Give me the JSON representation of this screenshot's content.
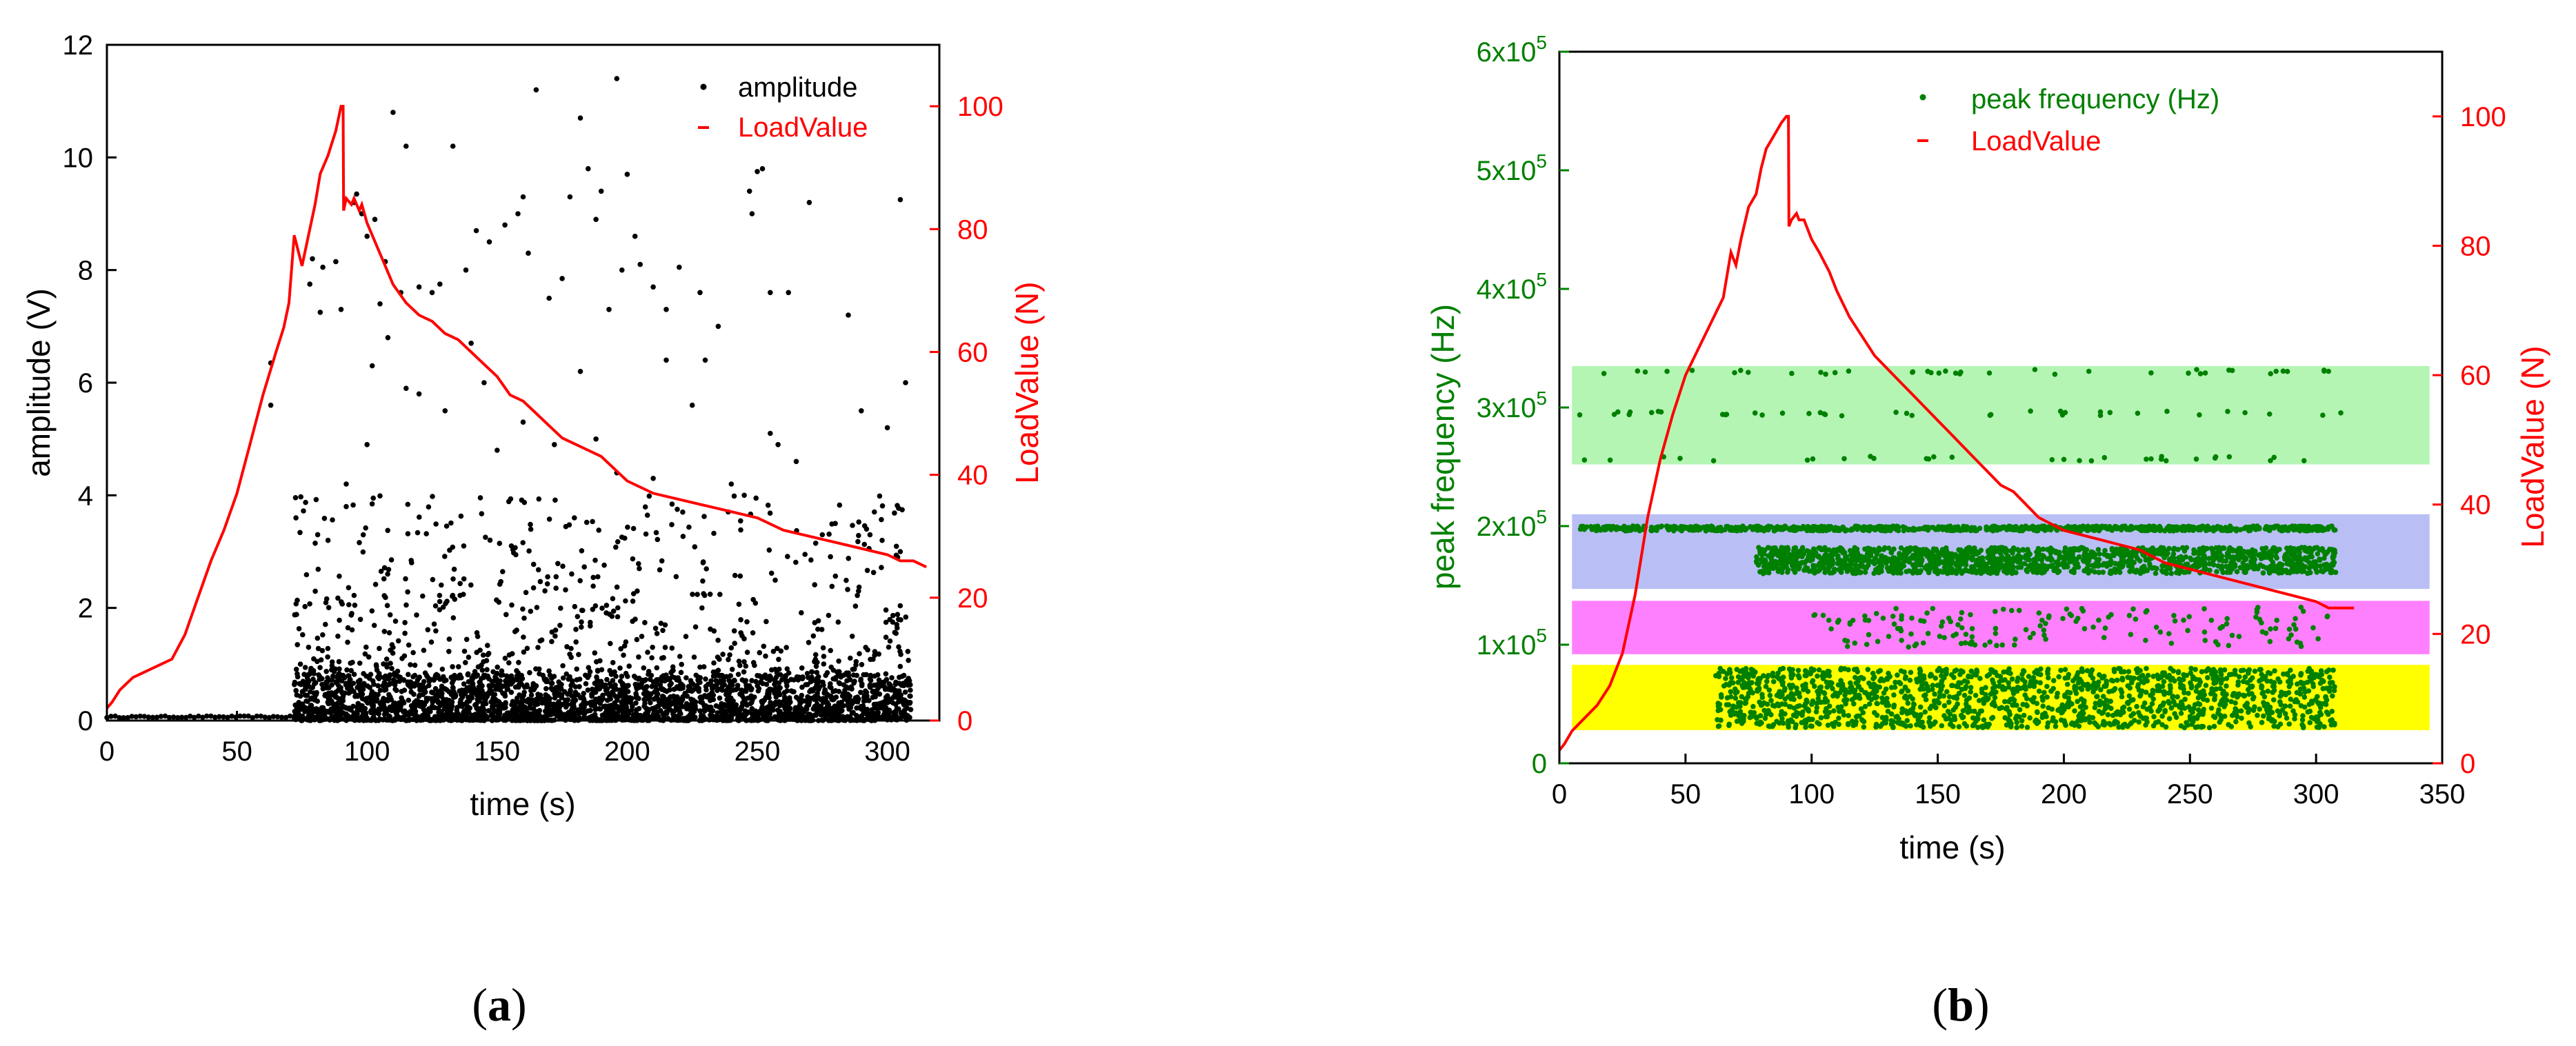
{
  "colors": {
    "axis": "#000000",
    "load": "#ff0000",
    "freq": "#008000",
    "points_a": "#000000",
    "band_green": "#b4f5b4",
    "band_blue": "#b9bff5",
    "band_magenta": "#ff80ff",
    "band_yellow": "#ffff00"
  },
  "panels": {
    "a": {
      "label_open": "(",
      "label_letter": "a",
      "label_close": ")"
    },
    "b": {
      "label_open": "(",
      "label_letter": "b",
      "label_close": ")"
    }
  },
  "chart_data": [
    {
      "id": "a",
      "type": "scatter",
      "xlabel": "time (s)",
      "ylabel": "amplitude (V)",
      "y2label": "LoadValue (N)",
      "xlim": [
        0,
        320
      ],
      "ylim": [
        0,
        12
      ],
      "y2lim": [
        0,
        110
      ],
      "xticks": [
        0,
        50,
        100,
        150,
        200,
        250,
        300
      ],
      "yticks": [
        0,
        2,
        4,
        6,
        8,
        10,
        12
      ],
      "y2ticks": [
        0,
        20,
        40,
        60,
        80,
        100
      ],
      "legend_position": "top-right",
      "series": [
        {
          "name": "amplitude",
          "kind": "scatter",
          "axis": "left",
          "description": "dense AE hits after ~72 s, mostly below 1 V, sparse outliers up to ~11.4 V",
          "baseline": {
            "x_start": 0,
            "x_end": 72,
            "y": 0.05
          },
          "dense_range": {
            "x_start": 72,
            "x_end": 309,
            "y_min": 0,
            "y_max": 0.8
          },
          "scatter_range": {
            "x_start": 72,
            "x_end": 309,
            "y_min": 0.8,
            "y_max": 4
          },
          "outliers": [
            [
              63,
              6.35
            ],
            [
              63,
              5.6
            ],
            [
              78,
              7.75
            ],
            [
              79,
              8.2
            ],
            [
              82,
              7.25
            ],
            [
              83,
              8.05
            ],
            [
              85,
              3.2
            ],
            [
              88,
              8.15
            ],
            [
              90,
              7.3
            ],
            [
              92,
              4.2
            ],
            [
              95,
              9.2
            ],
            [
              96,
              9.35
            ],
            [
              98,
              9.0
            ],
            [
              100,
              8.6
            ],
            [
              103,
              8.9
            ],
            [
              105,
              7.4
            ],
            [
              107,
              8.15
            ],
            [
              110,
              10.8
            ],
            [
              113,
              7.6
            ],
            [
              115,
              10.2
            ],
            [
              120,
              7.7
            ],
            [
              125,
              7.6
            ],
            [
              128,
              7.75
            ],
            [
              133,
              10.2
            ],
            [
              138,
              8.0
            ],
            [
              142,
              8.7
            ],
            [
              147,
              8.5
            ],
            [
              153,
              8.8
            ],
            [
              158,
              9.0
            ],
            [
              160,
              9.3
            ],
            [
              162,
              8.3
            ],
            [
              165,
              11.2
            ],
            [
              170,
              7.5
            ],
            [
              175,
              7.85
            ],
            [
              178,
              9.3
            ],
            [
              182,
              10.7
            ],
            [
              185,
              9.8
            ],
            [
              188,
              8.9
            ],
            [
              190,
              9.4
            ],
            [
              193,
              7.3
            ],
            [
              196,
              11.4
            ],
            [
              198,
              8.0
            ],
            [
              200,
              9.7
            ],
            [
              203,
              8.6
            ],
            [
              205,
              8.1
            ],
            [
              210,
              7.7
            ],
            [
              215,
              7.3
            ],
            [
              220,
              8.05
            ],
            [
              228,
              7.6
            ],
            [
              235,
              7.0
            ],
            [
              247,
              9.4
            ],
            [
              248,
              9.0
            ],
            [
              250,
              9.75
            ],
            [
              252,
              9.8
            ],
            [
              255,
              7.6
            ],
            [
              262,
              7.6
            ],
            [
              270,
              9.2
            ],
            [
              285,
              7.2
            ],
            [
              305,
              9.25
            ],
            [
              307,
              6.0
            ],
            [
              290,
              5.5
            ],
            [
              300,
              5.2
            ],
            [
              230,
              6.4
            ],
            [
              215,
              6.4
            ],
            [
              225,
              5.6
            ],
            [
              182,
              6.2
            ],
            [
              140,
              6.7
            ],
            [
              145,
              6.0
            ],
            [
              120,
              5.8
            ],
            [
              108,
              6.8
            ],
            [
              102,
              6.3
            ],
            [
              255,
              5.1
            ],
            [
              258,
              4.9
            ],
            [
              265,
              4.6
            ],
            [
              280,
              3.5
            ],
            [
              292,
              3.4
            ],
            [
              298,
              3.2
            ],
            [
              304,
              2.9
            ],
            [
              275,
              3.3
            ],
            [
              245,
              4.0
            ],
            [
              188,
              5.0
            ],
            [
              172,
              4.9
            ],
            [
              130,
              5.5
            ],
            [
              115,
              5.9
            ],
            [
              160,
              5.3
            ],
            [
              240,
              4.2
            ],
            [
              210,
              4.3
            ],
            [
              196,
              4.4
            ],
            [
              150,
              4.8
            ],
            [
              100,
              4.9
            ],
            [
              92,
              3.8
            ],
            [
              305,
              3.0
            ]
          ]
        },
        {
          "name": "LoadValue",
          "kind": "line",
          "axis": "right",
          "x": [
            0,
            2,
            5,
            10,
            15,
            20,
            25,
            30,
            35,
            40,
            45,
            50,
            55,
            60,
            65,
            68,
            70,
            72,
            75,
            78,
            80,
            82,
            85,
            88,
            90,
            90.8,
            91,
            92,
            94,
            95,
            97,
            98,
            100,
            103,
            107,
            110,
            115,
            120,
            125,
            130,
            135,
            140,
            145,
            150,
            155,
            160,
            165,
            170,
            175,
            180,
            185,
            190,
            195,
            200,
            210,
            220,
            230,
            240,
            250,
            260,
            270,
            280,
            290,
            300,
            305,
            310,
            315
          ],
          "y": [
            2,
            3,
            5,
            7,
            8,
            9,
            10,
            14,
            20,
            26,
            31,
            37,
            45,
            53,
            60,
            64,
            68,
            79,
            74,
            80,
            84,
            89,
            92,
            96,
            100,
            100,
            83,
            85,
            84,
            85,
            83,
            84,
            81,
            78,
            74,
            71,
            68,
            66,
            65,
            63,
            62,
            60,
            58,
            56,
            53,
            52,
            50,
            48,
            46,
            45,
            44,
            43,
            41,
            39,
            37,
            36,
            35,
            34,
            33,
            31,
            30,
            29,
            28,
            27,
            26,
            26,
            25
          ]
        }
      ]
    },
    {
      "id": "b",
      "type": "scatter",
      "xlabel": "time (s)",
      "ylabel": "peak frequency (Hz)",
      "y2label": "LoadValue (N)",
      "xlim": [
        0,
        350
      ],
      "ylim": [
        0,
        600000
      ],
      "y2lim": [
        0,
        110
      ],
      "xticks": [
        0,
        50,
        100,
        150,
        200,
        250,
        300,
        350
      ],
      "ytick_labels": [
        {
          "value": 0,
          "mantissa": "0",
          "exponent": ""
        },
        {
          "value": 100000,
          "mantissa": "1x10",
          "exponent": "5"
        },
        {
          "value": 200000,
          "mantissa": "2x10",
          "exponent": "5"
        },
        {
          "value": 300000,
          "mantissa": "3x10",
          "exponent": "5"
        },
        {
          "value": 400000,
          "mantissa": "4x10",
          "exponent": "5"
        },
        {
          "value": 500000,
          "mantissa": "5x10",
          "exponent": "5"
        },
        {
          "value": 600000,
          "mantissa": "6x10",
          "exponent": "5"
        }
      ],
      "y2ticks": [
        0,
        20,
        40,
        60,
        80,
        100
      ],
      "legend_position": "top-right",
      "bands": [
        {
          "name": "band-high",
          "color_key": "band_green",
          "x": [
            5,
            345
          ],
          "y": [
            252000,
            335000
          ]
        },
        {
          "name": "band-mid",
          "color_key": "band_blue",
          "x": [
            5,
            345
          ],
          "y": [
            147000,
            210000
          ]
        },
        {
          "name": "band-low-mid",
          "color_key": "band_magenta",
          "x": [
            5,
            345
          ],
          "y": [
            92000,
            137000
          ]
        },
        {
          "name": "band-low",
          "color_key": "band_yellow",
          "x": [
            5,
            345
          ],
          "y": [
            28000,
            83000
          ]
        }
      ],
      "series": [
        {
          "name": "peak frequency (Hz)",
          "kind": "scatter",
          "axis": "left",
          "clusters": [
            {
              "name": "~300 kHz cluster",
              "x_start": 5,
              "x_end": 310,
              "levels": [
                257000,
                295000,
                330000
              ],
              "density": "sparse"
            },
            {
              "name": "~200 kHz line",
              "x_start": 8,
              "x_end": 308,
              "levels": [
                198000
              ],
              "density": "dense"
            },
            {
              "name": "~170 kHz band",
              "x_start": 78,
              "x_end": 308,
              "y_min": 160000,
              "y_max": 182000,
              "density": "dense"
            },
            {
              "name": "~120 kHz cluster",
              "x_start": 100,
              "x_end": 308,
              "y_min": 98000,
              "y_max": 132000,
              "density": "sparse"
            },
            {
              "name": "~50 kHz band",
              "x_start": 62,
              "x_end": 308,
              "y_min": 30000,
              "y_max": 80000,
              "density": "dense"
            }
          ]
        },
        {
          "name": "LoadValue",
          "kind": "line",
          "axis": "right",
          "x": [
            0,
            2,
            5,
            10,
            15,
            20,
            25,
            30,
            35,
            40,
            45,
            50,
            55,
            60,
            65,
            68,
            70,
            72,
            75,
            78,
            80,
            82,
            85,
            88,
            90,
            90.8,
            91,
            92,
            94,
            95,
            97,
            98,
            100,
            103,
            107,
            110,
            115,
            120,
            125,
            130,
            135,
            140,
            145,
            150,
            155,
            160,
            165,
            170,
            175,
            180,
            185,
            190,
            195,
            200,
            210,
            220,
            230,
            240,
            250,
            260,
            270,
            280,
            290,
            300,
            305,
            310,
            315
          ],
          "y": [
            2,
            3,
            5,
            7,
            9,
            12,
            17,
            26,
            38,
            47,
            54,
            60,
            64,
            68,
            72,
            79,
            77,
            81,
            86,
            88,
            92,
            95,
            97,
            99,
            100,
            100,
            83,
            84,
            85,
            84,
            84,
            83,
            81,
            79,
            76,
            73,
            69,
            66,
            63,
            61,
            59,
            57,
            55,
            53,
            51,
            49,
            47,
            45,
            43,
            42,
            40,
            38,
            37,
            36,
            35,
            34,
            33,
            31,
            30,
            29,
            28,
            27,
            26,
            25,
            24,
            24,
            24
          ]
        }
      ]
    }
  ]
}
